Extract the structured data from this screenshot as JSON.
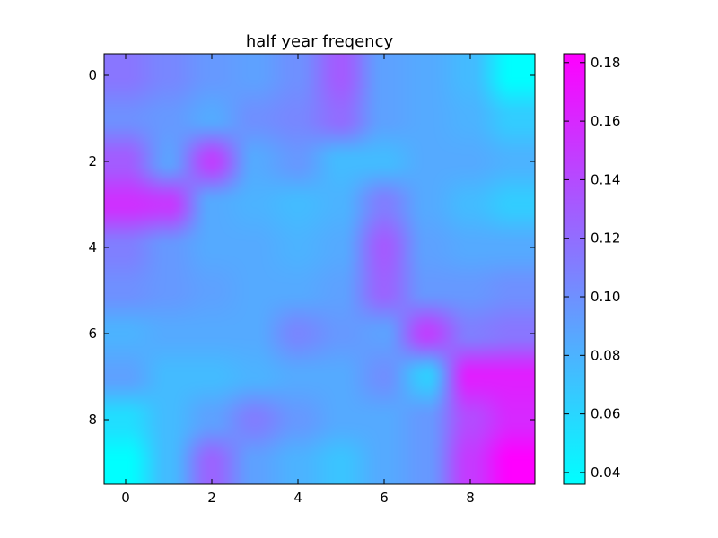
{
  "chart_data": {
    "type": "heatmap",
    "title": "half year freqency",
    "xlabel": "",
    "ylabel": "",
    "colormap": "cool",
    "interpolation": "bicubic",
    "rows": 10,
    "cols": 10,
    "x_ticks": [
      "0",
      "2",
      "4",
      "6",
      "8"
    ],
    "y_ticks": [
      "0",
      "2",
      "4",
      "6",
      "8"
    ],
    "colorbar": {
      "min": 0.036,
      "max": 0.183,
      "ticks": [
        "0.04",
        "0.06",
        "0.08",
        "0.10",
        "0.12",
        "0.14",
        "0.16",
        "0.18"
      ],
      "low_color": "#00ffff",
      "high_color": "#ff00ff"
    },
    "values": [
      [
        0.115,
        0.105,
        0.095,
        0.09,
        0.1,
        0.13,
        0.09,
        0.085,
        0.075,
        0.036
      ],
      [
        0.1,
        0.095,
        0.085,
        0.1,
        0.105,
        0.12,
        0.09,
        0.085,
        0.08,
        0.065
      ],
      [
        0.13,
        0.09,
        0.145,
        0.085,
        0.095,
        0.075,
        0.075,
        0.085,
        0.085,
        0.08
      ],
      [
        0.155,
        0.15,
        0.085,
        0.08,
        0.075,
        0.08,
        0.11,
        0.085,
        0.075,
        0.065
      ],
      [
        0.11,
        0.095,
        0.085,
        0.085,
        0.08,
        0.085,
        0.13,
        0.09,
        0.085,
        0.085
      ],
      [
        0.1,
        0.095,
        0.09,
        0.085,
        0.085,
        0.09,
        0.125,
        0.095,
        0.095,
        0.1
      ],
      [
        0.08,
        0.085,
        0.085,
        0.085,
        0.105,
        0.095,
        0.09,
        0.145,
        0.11,
        0.115
      ],
      [
        0.09,
        0.075,
        0.075,
        0.08,
        0.085,
        0.085,
        0.1,
        0.065,
        0.165,
        0.165
      ],
      [
        0.055,
        0.075,
        0.09,
        0.11,
        0.095,
        0.085,
        0.085,
        0.095,
        0.14,
        0.16
      ],
      [
        0.036,
        0.075,
        0.125,
        0.09,
        0.08,
        0.07,
        0.085,
        0.095,
        0.15,
        0.183
      ]
    ]
  }
}
